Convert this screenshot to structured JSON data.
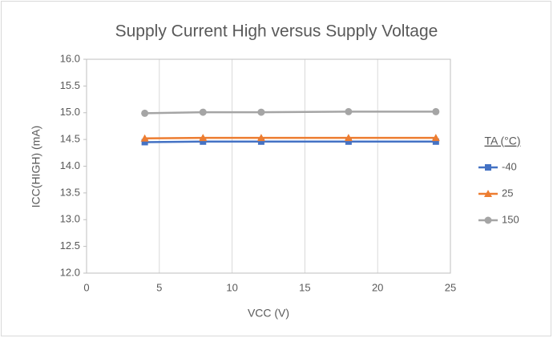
{
  "chart_data": {
    "type": "line",
    "title": "Supply Current High versus Supply Voltage",
    "x_label": "VCC (V)",
    "y_label": "ICC(HIGH) (mA)",
    "legend_title": "TA (°C)",
    "legend_position": "right",
    "grid": "x",
    "xlim": [
      0,
      25
    ],
    "xticks": [
      0,
      5,
      10,
      15,
      20,
      25
    ],
    "ylim": [
      12,
      16
    ],
    "yticks": [
      {
        "value": 12,
        "label": "12.0"
      },
      {
        "value": 12.5,
        "label": "12.5"
      },
      {
        "value": 13,
        "label": "13.0"
      },
      {
        "value": 13.5,
        "label": "13.5"
      },
      {
        "value": 14,
        "label": "14.0"
      },
      {
        "value": 14.5,
        "label": "14.5"
      },
      {
        "value": 15,
        "label": "15.0"
      },
      {
        "value": 15.5,
        "label": "15.5"
      },
      {
        "value": 16,
        "label": "16.0"
      }
    ],
    "x": [
      4,
      8,
      12,
      18,
      24
    ],
    "series": [
      {
        "name": "-40",
        "color": "#4472c4",
        "marker": "square",
        "values": [
          14.45,
          14.46,
          14.46,
          14.46,
          14.46
        ]
      },
      {
        "name": "25",
        "color": "#ed7d31",
        "marker": "triangle",
        "values": [
          14.52,
          14.53,
          14.53,
          14.53,
          14.53
        ]
      },
      {
        "name": "150",
        "color": "#a5a5a5",
        "marker": "circle",
        "values": [
          14.99,
          15.01,
          15.01,
          15.02,
          15.02
        ]
      }
    ]
  }
}
